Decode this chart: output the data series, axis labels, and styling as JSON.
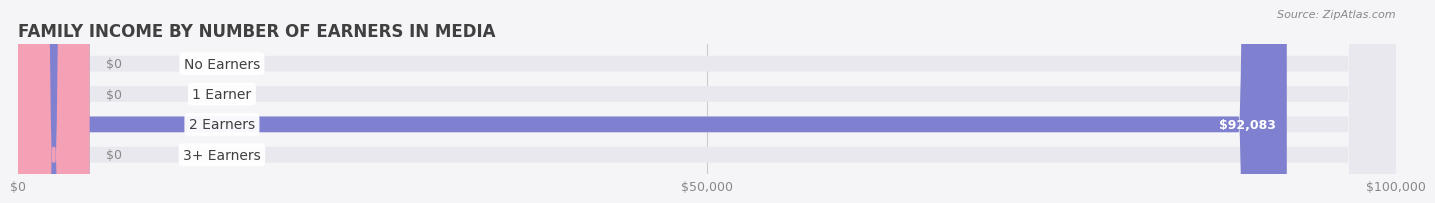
{
  "title": "FAMILY INCOME BY NUMBER OF EARNERS IN MEDIA",
  "source": "Source: ZipAtlas.com",
  "categories": [
    "No Earners",
    "1 Earner",
    "2 Earners",
    "3+ Earners"
  ],
  "values": [
    0,
    0,
    92083,
    0
  ],
  "max_value": 100000,
  "bar_colors": [
    "#c9a0dc",
    "#7ececa",
    "#8080d0",
    "#f4a0b5"
  ],
  "bar_bg_color": "#e8e8ee",
  "tick_labels": [
    "$0",
    "$50,000",
    "$100,000"
  ],
  "tick_values": [
    0,
    50000,
    100000
  ],
  "value_label_color": "#ffffff",
  "axis_label_color": "#888888",
  "title_color": "#404040",
  "source_color": "#888888",
  "background_color": "#f5f5f8",
  "bar_height": 0.52,
  "bar_value_fontsize": 9,
  "label_fontsize": 10,
  "title_fontsize": 12
}
